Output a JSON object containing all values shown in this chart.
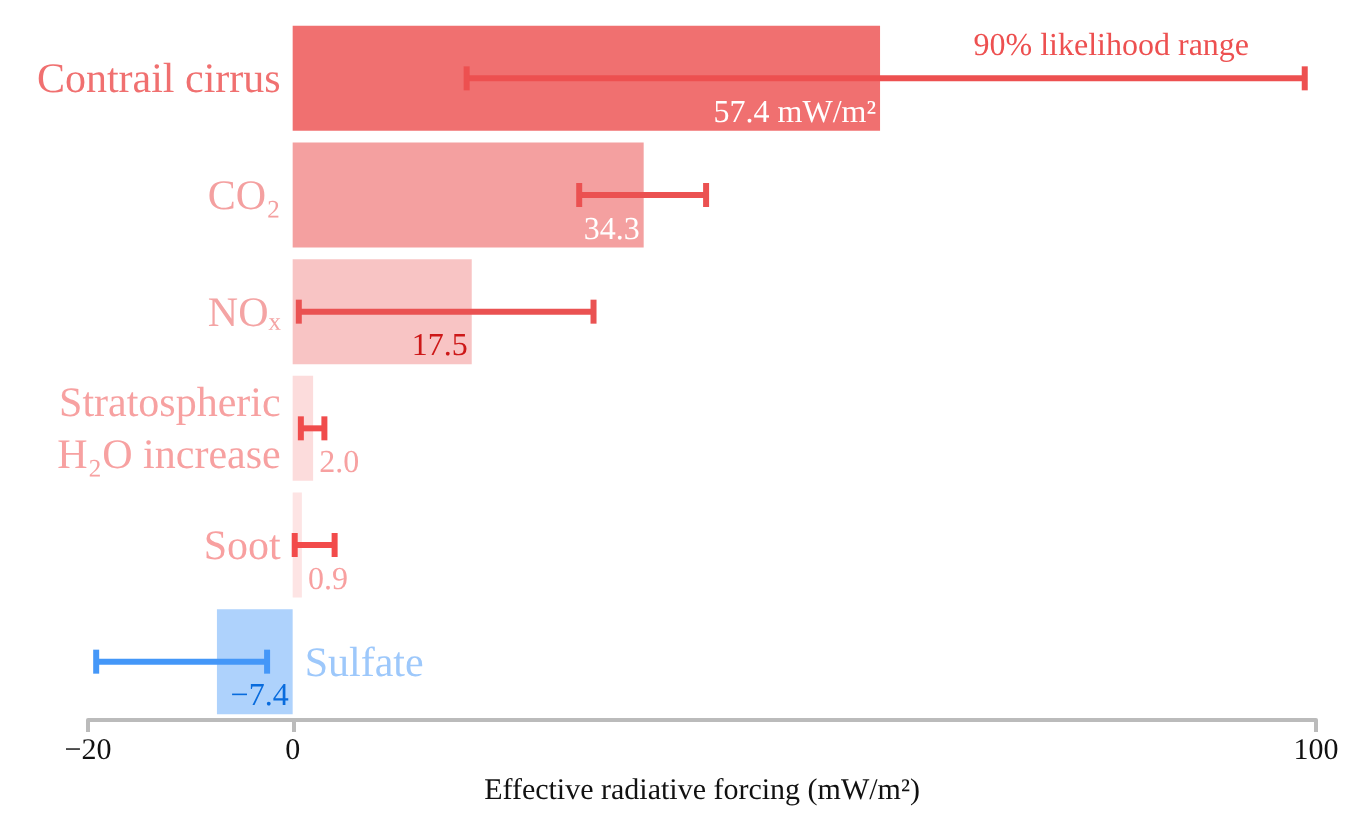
{
  "chart_data": {
    "type": "bar",
    "orientation": "horizontal",
    "categories": [
      "Contrail cirrus",
      "CO₂",
      "NOₓ",
      "Stratospheric H₂O increase",
      "Soot",
      "Sulfate"
    ],
    "values": [
      57.4,
      34.3,
      17.5,
      2.0,
      0.9,
      -7.4
    ],
    "colors": [
      "#f07070",
      "#f4a0a0",
      "#f8c4c4",
      "#fcdcdc",
      "#fde4e4",
      "#aed2fc"
    ],
    "errors": [
      [
        17,
        98.9
      ],
      [
        28,
        40.4
      ],
      [
        0.6,
        29.4
      ],
      [
        0.8,
        3.1
      ],
      [
        0.2,
        4.1
      ],
      [
        -19.2,
        -2.5
      ]
    ],
    "value_labels": [
      "57.4 mW/m²",
      "34.3",
      "17.5",
      "2.0",
      "0.9",
      "−7.4"
    ],
    "xlabel": "Effective radiative forcing (mW/m²)",
    "xlim": [
      -20,
      100
    ],
    "xticks": [
      {
        "value": -20,
        "label": "−20"
      },
      0,
      100
    ],
    "annotations": [
      {
        "text": "90% likelihood range",
        "x": 80,
        "y": "Contrail cirrus"
      }
    ],
    "grid": false
  }
}
